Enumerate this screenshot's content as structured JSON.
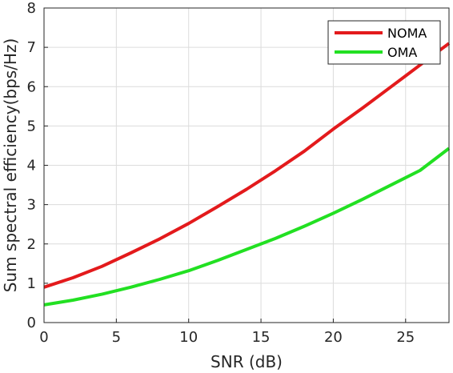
{
  "chart_data": {
    "type": "line",
    "title": "",
    "xlabel": "SNR (dB)",
    "ylabel": "Sum spectral efficiency(bps/Hz)",
    "xlim": [
      0,
      28
    ],
    "ylim": [
      0,
      8
    ],
    "xticks": [
      0,
      5,
      10,
      15,
      20,
      25
    ],
    "yticks": [
      0,
      1,
      2,
      3,
      4,
      5,
      6,
      7,
      8
    ],
    "grid": true,
    "legend_position": "top-right",
    "x": [
      0,
      2,
      4,
      6,
      8,
      10,
      12,
      14,
      16,
      18,
      20,
      22,
      24,
      26,
      28
    ],
    "series": [
      {
        "name": "NOMA",
        "color": "#e31a1c",
        "values": [
          0.9,
          1.14,
          1.43,
          1.77,
          2.13,
          2.52,
          2.95,
          3.39,
          3.86,
          4.36,
          4.92,
          5.45,
          6.0,
          6.55,
          7.1
        ]
      },
      {
        "name": "OMA",
        "color": "#22e022",
        "values": [
          0.45,
          0.57,
          0.72,
          0.9,
          1.1,
          1.32,
          1.58,
          1.86,
          2.14,
          2.45,
          2.78,
          3.13,
          3.5,
          3.87,
          4.43
        ]
      }
    ]
  }
}
